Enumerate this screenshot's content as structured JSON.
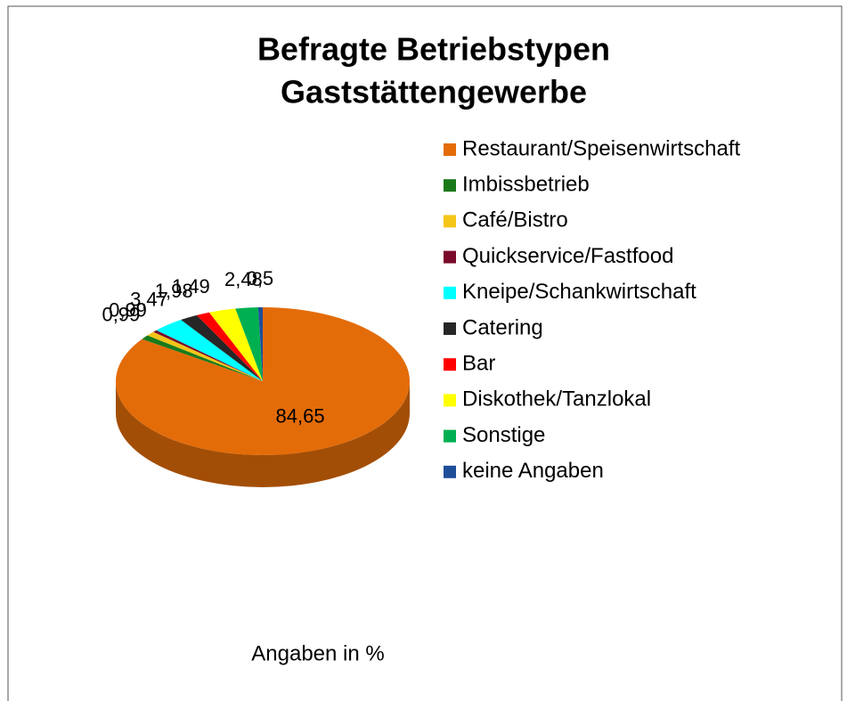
{
  "chart_data": {
    "type": "pie3d",
    "title": [
      "Befragte Betriebstypen",
      "Gaststättengewerbe"
    ],
    "note": "Angaben in %",
    "categories": [
      "Restaurant/Speisenwirtschaft",
      "Imbissbetrieb",
      "Café/Bistro",
      "Quickservice/Fastfood",
      "Kneipe/Schankwirtschaft",
      "Catering",
      "Bar",
      "Diskothek/Tanzlokal",
      "Sonstige",
      "keine Angaben"
    ],
    "values": [
      84.65,
      0.99,
      0.99,
      0.5,
      3.47,
      1.98,
      1.49,
      2.95,
      2.48,
      0.5
    ],
    "value_labels": [
      "84,65",
      "0,99",
      "0,99",
      null,
      "3,47",
      "1,98",
      "1,49",
      null,
      "2,48",
      "0,5"
    ],
    "colors": [
      "#e36c09",
      "#1a7a1a",
      "#f5c518",
      "#7a0a2a",
      "#00ffff",
      "#262626",
      "#ff0000",
      "#ffff00",
      "#00b050",
      "#1f4e99"
    ],
    "legend": "right"
  }
}
